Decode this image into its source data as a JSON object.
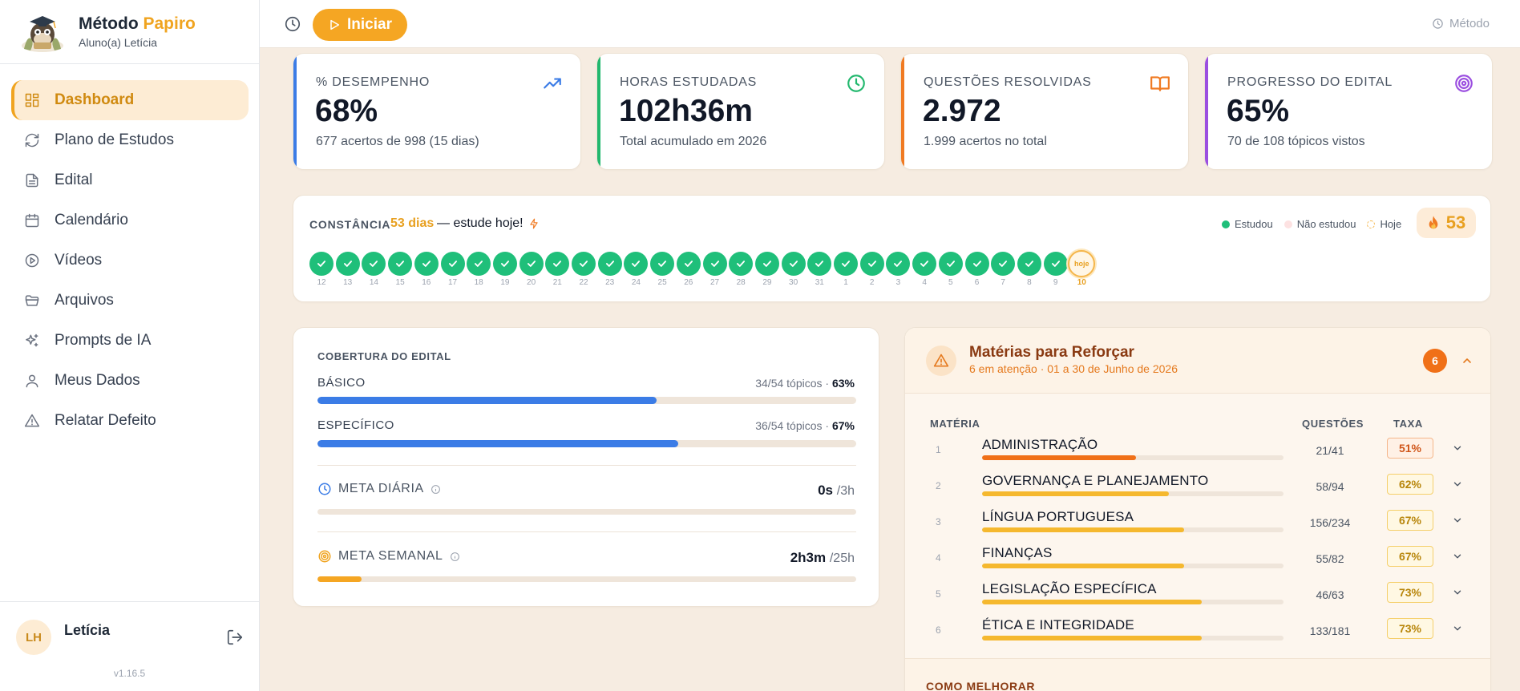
{
  "brand": {
    "name_part1": "Método",
    "name_part2": "Papiro",
    "subtitle": "Aluno(a) Letícia"
  },
  "sidebar": {
    "items": [
      {
        "label": "Dashboard",
        "icon": "dashboard-icon",
        "active": true
      },
      {
        "label": "Plano de Estudos",
        "icon": "refresh-icon"
      },
      {
        "label": "Edital",
        "icon": "document-icon"
      },
      {
        "label": "Calendário",
        "icon": "calendar-icon"
      },
      {
        "label": "Vídeos",
        "icon": "play-circle-icon"
      },
      {
        "label": "Arquivos",
        "icon": "folder-icon"
      },
      {
        "label": "Prompts de IA",
        "icon": "sparkles-icon"
      },
      {
        "label": "Meus Dados",
        "icon": "user-icon"
      },
      {
        "label": "Relatar Defeito",
        "icon": "warning-icon"
      }
    ],
    "user": {
      "initials": "LH",
      "name": "Letícia"
    },
    "version": "v1.16.5"
  },
  "topbar": {
    "start_label": "Iniciar",
    "right_label": "Método"
  },
  "stats": [
    {
      "label": "% DESEMPENHO",
      "value": "68%",
      "sub": "677 acertos de 998 (15 dias)",
      "color": "#3b7ce6",
      "icon": "trending-up-icon"
    },
    {
      "label": "HORAS ESTUDADAS",
      "value": "102h36m",
      "sub": "Total acumulado em 2026",
      "color": "#22b86e",
      "icon": "clock-icon"
    },
    {
      "label": "QUESTÕES RESOLVIDAS",
      "value": "2.972",
      "sub": "1.999 acertos no total",
      "color": "#f07a22",
      "icon": "book-icon"
    },
    {
      "label": "PROGRESSO DO EDITAL",
      "value": "65%",
      "sub": "70 de 108 tópicos vistos",
      "color": "#9b4fe0",
      "icon": "target-icon"
    }
  ],
  "constancia": {
    "label": "CONSTÂNCIA",
    "days_text": "53 dias",
    "message": "— estude hoje!",
    "legend": {
      "studied": "Estudou",
      "not_studied": "Não estudou",
      "today": "Hoje"
    },
    "streak": "53",
    "days": [
      "12",
      "13",
      "14",
      "15",
      "16",
      "17",
      "18",
      "19",
      "20",
      "21",
      "22",
      "23",
      "24",
      "25",
      "26",
      "27",
      "28",
      "29",
      "30",
      "31",
      "1",
      "2",
      "3",
      "4",
      "5",
      "6",
      "7",
      "8",
      "9"
    ],
    "today_day": "10",
    "today_circle_label": "hoje"
  },
  "coverage": {
    "title": "COBERTURA DO EDITAL",
    "rows": [
      {
        "label": "BÁSICO",
        "topics": "34/54 tópicos · ",
        "pct": "63%",
        "fraction": 0.63
      },
      {
        "label": "ESPECÍFICO",
        "topics": "36/54 tópicos · ",
        "pct": "67%",
        "fraction": 0.67
      }
    ],
    "meta_daily": {
      "label": "META DIÁRIA",
      "value": "0s",
      "target": "/3h",
      "fraction": 0
    },
    "meta_weekly": {
      "label": "META SEMANAL",
      "value": "2h3m",
      "target": "/25h",
      "fraction": 0.082
    }
  },
  "reforcar": {
    "title": "Matérias para Reforçar",
    "subtitle": "6 em atenção · 01 a 30 de Junho de 2026",
    "count": "6",
    "headers": {
      "subject": "MATÉRIA",
      "questions": "QUESTÕES",
      "rate": "TAXA"
    },
    "rows": [
      {
        "num": "1",
        "name": "ADMINISTRAÇÃO",
        "questions": "21/41",
        "rate": "51%",
        "fraction": 0.51,
        "color": "#f07018"
      },
      {
        "num": "2",
        "name": "GOVERNANÇA E PLANEJAMENTO",
        "questions": "58/94",
        "rate": "62%",
        "fraction": 0.62,
        "color": "#f5b82e"
      },
      {
        "num": "3",
        "name": "LÍNGUA PORTUGUESA",
        "questions": "156/234",
        "rate": "67%",
        "fraction": 0.67,
        "color": "#f5b82e"
      },
      {
        "num": "4",
        "name": "FINANÇAS",
        "questions": "55/82",
        "rate": "67%",
        "fraction": 0.67,
        "color": "#f5b82e"
      },
      {
        "num": "5",
        "name": "LEGISLAÇÃO ESPECÍFICA",
        "questions": "46/63",
        "rate": "73%",
        "fraction": 0.73,
        "color": "#f5b82e"
      },
      {
        "num": "6",
        "name": "ÉTICA E INTEGRIDADE",
        "questions": "133/181",
        "rate": "73%",
        "fraction": 0.73,
        "color": "#f5b82e"
      }
    ],
    "footer_label": "COMO MELHORAR"
  }
}
